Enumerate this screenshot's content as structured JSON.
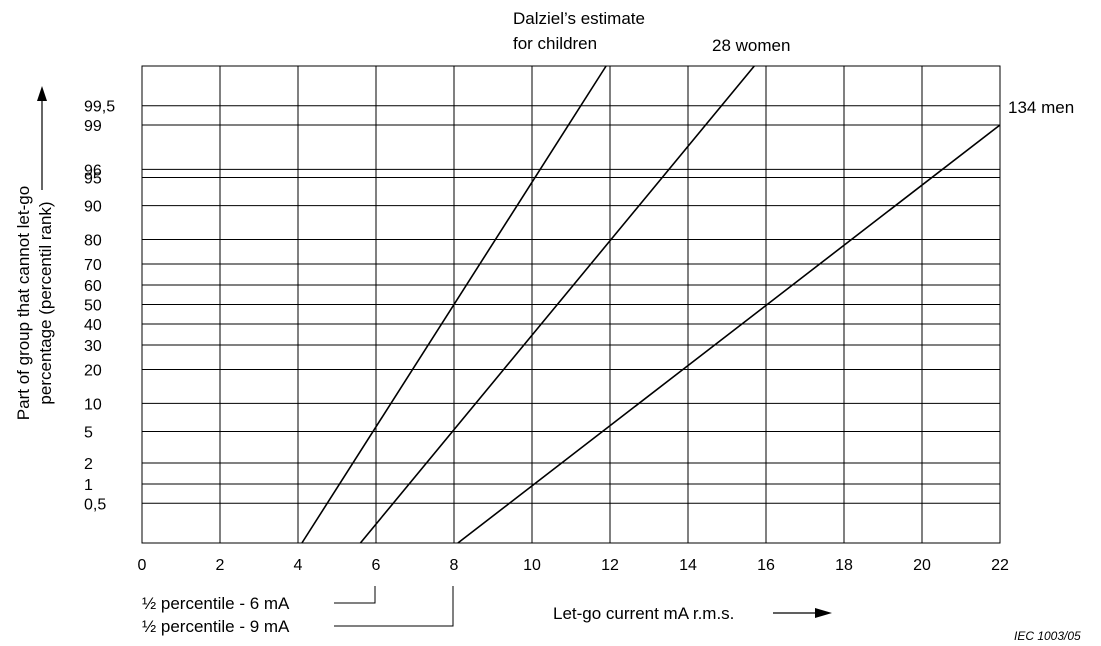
{
  "chart_data": {
    "type": "line",
    "title": "",
    "xlabel": "Let-go current   mA r.m.s.",
    "ylabel_line1": "Part of group that cannot let-go",
    "ylabel_line2": "percentage (percentil rank)",
    "x_ticks": [
      "0",
      "2",
      "4",
      "6",
      "8",
      "10",
      "12",
      "14",
      "16",
      "18",
      "20",
      "22"
    ],
    "y_ticks": [
      "0,5",
      "1",
      "2",
      "5",
      "10",
      "20",
      "30",
      "40",
      "50",
      "60",
      "70",
      "80",
      "90",
      "95",
      "96",
      "99",
      "99,5"
    ],
    "xlim": [
      0,
      22
    ],
    "grid": true,
    "series": [
      {
        "name": "Dalziel’s estimate for children",
        "name_line1": "Dalziel’s estimate",
        "name_line2": "for children",
        "points": [
          [
            4.1,
            0.1
          ],
          [
            11.9,
            99.9
          ]
        ]
      },
      {
        "name": "28 women",
        "points": [
          [
            5.6,
            0.1
          ],
          [
            15.7,
            99.9
          ]
        ]
      },
      {
        "name": "134 men",
        "points": [
          [
            8.1,
            0.1
          ],
          [
            22.0,
            99.0
          ]
        ]
      }
    ],
    "annotations": [
      {
        "text": "½ percentile - 6 mA",
        "x": 6
      },
      {
        "text": "½ percentile - 9 mA",
        "x": 8
      }
    ],
    "reference": "IEC   1003/05"
  }
}
